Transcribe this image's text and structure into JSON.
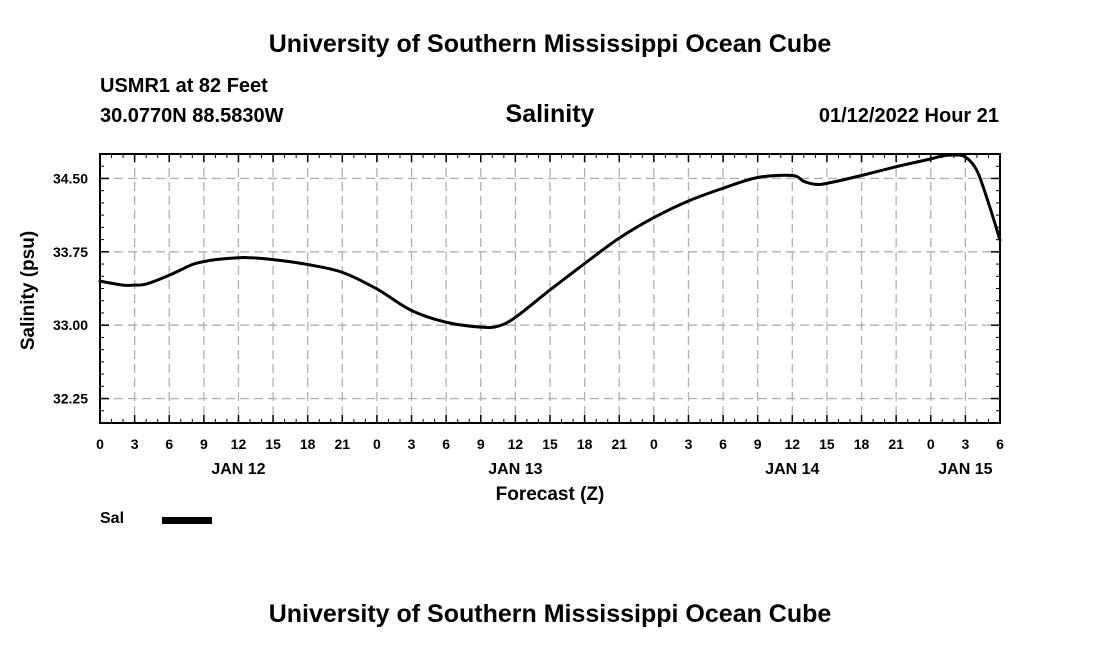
{
  "header": {
    "title": "University of Southern Mississippi Ocean Cube",
    "station": "USMR1 at 82 Feet",
    "coordinates": "30.0770N  88.5830W",
    "chart_title": "Salinity",
    "datetime": "01/12/2022 Hour 21"
  },
  "footer": {
    "title": "University of Southern Mississippi Ocean Cube"
  },
  "legend": {
    "label": "Sal",
    "color": "#000000"
  },
  "chart_data": {
    "type": "line",
    "title": "Salinity",
    "xlabel": "Forecast (Z)",
    "ylabel": "Salinity (psu)",
    "x_unit": "hours from 00Z JAN 12",
    "xlim": [
      0,
      78
    ],
    "ylim": [
      32.0,
      34.75
    ],
    "grid": true,
    "y_ticks": [
      32.25,
      33.0,
      33.75,
      34.5
    ],
    "y_tick_labels": [
      "32.25",
      "33.00",
      "33.75",
      "34.50"
    ],
    "x_ticks": [
      0,
      3,
      6,
      9,
      12,
      15,
      18,
      21,
      24,
      27,
      30,
      33,
      36,
      39,
      42,
      45,
      48,
      51,
      54,
      57,
      60,
      63,
      66,
      69,
      72,
      75,
      78
    ],
    "x_tick_labels": [
      "0",
      "3",
      "6",
      "9",
      "12",
      "15",
      "18",
      "21",
      "0",
      "3",
      "6",
      "9",
      "12",
      "15",
      "18",
      "21",
      "0",
      "3",
      "6",
      "9",
      "12",
      "15",
      "18",
      "21",
      "0",
      "3",
      "6"
    ],
    "day_labels": [
      {
        "x": 12,
        "label": "JAN 12"
      },
      {
        "x": 36,
        "label": "JAN 13"
      },
      {
        "x": 60,
        "label": "JAN 14"
      },
      {
        "x": 75,
        "label": "JAN 15"
      }
    ],
    "series": [
      {
        "name": "Sal",
        "color": "#000000",
        "x": [
          0,
          2,
          3,
          4,
          6,
          8,
          9,
          10,
          12,
          13,
          15,
          18,
          21,
          24,
          27,
          30,
          33,
          34.5,
          36,
          39,
          42,
          45,
          48,
          51,
          54,
          57,
          60,
          61,
          62,
          63,
          66,
          69,
          72,
          73,
          74,
          75,
          76,
          77,
          78
        ],
        "values": [
          33.45,
          33.41,
          33.41,
          33.42,
          33.51,
          33.62,
          33.65,
          33.67,
          33.69,
          33.69,
          33.67,
          33.62,
          33.54,
          33.37,
          33.15,
          33.03,
          32.98,
          32.99,
          33.08,
          33.36,
          33.63,
          33.89,
          34.1,
          34.27,
          34.4,
          34.51,
          34.53,
          34.47,
          34.44,
          34.45,
          34.53,
          34.62,
          34.7,
          34.73,
          34.74,
          34.72,
          34.58,
          34.25,
          33.87
        ]
      }
    ]
  }
}
